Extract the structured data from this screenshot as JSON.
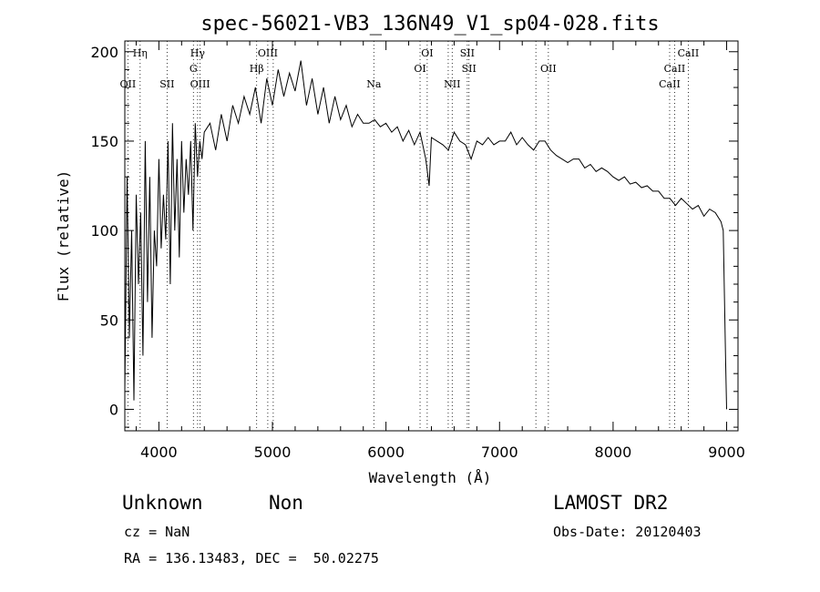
{
  "chart_data": {
    "type": "line",
    "title": "spec-56021-VB3_136N49_V1_sp04-028.fits",
    "xlabel": "Wavelength (Å)",
    "ylabel": "Flux (relative)",
    "xlim": [
      3700,
      9100
    ],
    "ylim": [
      -12,
      206
    ],
    "xticks": [
      4000,
      5000,
      6000,
      7000,
      8000,
      9000
    ],
    "yticks": [
      0,
      50,
      100,
      150,
      200
    ],
    "grid": false,
    "line_color": "#000000",
    "series": [
      {
        "x": [
          3700,
          3720,
          3740,
          3760,
          3780,
          3800,
          3820,
          3840,
          3860,
          3880,
          3900,
          3920,
          3940,
          3960,
          3980,
          4000,
          4020,
          4040,
          4060,
          4080,
          4100,
          4120,
          4140,
          4160,
          4180,
          4200,
          4220,
          4240,
          4260,
          4280,
          4300,
          4320,
          4340,
          4360,
          4380,
          4400,
          4450,
          4500,
          4550,
          4600,
          4650,
          4700,
          4750,
          4800,
          4850,
          4900,
          4950,
          5000,
          5050,
          5100,
          5150,
          5200,
          5250,
          5300,
          5350,
          5400,
          5450,
          5500,
          5550,
          5600,
          5650,
          5700,
          5750,
          5800,
          5850,
          5900,
          5950,
          6000,
          6050,
          6100,
          6150,
          6200,
          6250,
          6300,
          6350,
          6380,
          6400,
          6450,
          6500,
          6550,
          6600,
          6650,
          6700,
          6750,
          6800,
          6850,
          6900,
          6950,
          7000,
          7050,
          7100,
          7150,
          7200,
          7250,
          7300,
          7350,
          7400,
          7450,
          7500,
          7550,
          7600,
          7650,
          7700,
          7750,
          7800,
          7850,
          7900,
          7950,
          8000,
          8050,
          8100,
          8150,
          8200,
          8250,
          8300,
          8350,
          8400,
          8450,
          8500,
          8550,
          8600,
          8650,
          8700,
          8750,
          8800,
          8850,
          8900,
          8950,
          8970,
          8990,
          9000
        ],
        "y": [
          10,
          130,
          40,
          100,
          5,
          120,
          70,
          110,
          30,
          150,
          60,
          130,
          40,
          100,
          80,
          140,
          90,
          120,
          95,
          150,
          70,
          160,
          100,
          140,
          85,
          150,
          110,
          140,
          120,
          150,
          100,
          160,
          130,
          150,
          140,
          155,
          160,
          145,
          165,
          150,
          170,
          160,
          175,
          165,
          180,
          160,
          185,
          170,
          190,
          175,
          188,
          178,
          195,
          170,
          185,
          165,
          180,
          160,
          175,
          162,
          170,
          158,
          165,
          160,
          160,
          162,
          158,
          160,
          155,
          158,
          150,
          156,
          148,
          155,
          140,
          125,
          152,
          150,
          148,
          145,
          155,
          150,
          148,
          140,
          150,
          148,
          152,
          148,
          150,
          150,
          155,
          148,
          152,
          148,
          145,
          150,
          150,
          145,
          142,
          140,
          138,
          140,
          140,
          135,
          137,
          133,
          135,
          133,
          130,
          128,
          130,
          126,
          127,
          124,
          125,
          122,
          122,
          118,
          118,
          114,
          118,
          115,
          112,
          114,
          108,
          112,
          110,
          105,
          100,
          30,
          0
        ]
      }
    ],
    "lines": [
      {
        "x": 3727,
        "label": "OII",
        "row": 2
      },
      {
        "x": 3835,
        "label": "Hη",
        "row": 0
      },
      {
        "x": 4072,
        "label": "SII",
        "row": 2
      },
      {
        "x": 4304,
        "label": "G",
        "row": 1
      },
      {
        "x": 4341,
        "label": "Hγ",
        "row": 0
      },
      {
        "x": 4363,
        "label": "OIII",
        "row": 2
      },
      {
        "x": 4861,
        "label": "Hβ",
        "row": 1
      },
      {
        "x": 4959,
        "label": "OIII",
        "row": 0
      },
      {
        "x": 5007,
        "label": "",
        "row": 0
      },
      {
        "x": 5893,
        "label": "Na",
        "row": 2
      },
      {
        "x": 6300,
        "label": "OI",
        "row": 1
      },
      {
        "x": 6363,
        "label": "OI",
        "row": 0
      },
      {
        "x": 6548,
        "label": "",
        "row": 2
      },
      {
        "x": 6583,
        "label": "NII",
        "row": 2
      },
      {
        "x": 6716,
        "label": "SII",
        "row": 0
      },
      {
        "x": 6731,
        "label": "SII",
        "row": 1
      },
      {
        "x": 7320,
        "label": "",
        "row": 1
      },
      {
        "x": 7430,
        "label": "OII",
        "row": 1
      },
      {
        "x": 8498,
        "label": "CaII",
        "row": 2
      },
      {
        "x": 8542,
        "label": "CaII",
        "row": 1
      },
      {
        "x": 8662,
        "label": "CaII",
        "row": 0
      }
    ]
  },
  "footer": {
    "object_class": "Unknown",
    "subclass": "Non",
    "release": "LAMOST DR2",
    "cz": "cz = NaN",
    "obs_date": "Obs-Date: 20120403",
    "coords": "RA = 136.13483, DEC =  50.02275"
  }
}
